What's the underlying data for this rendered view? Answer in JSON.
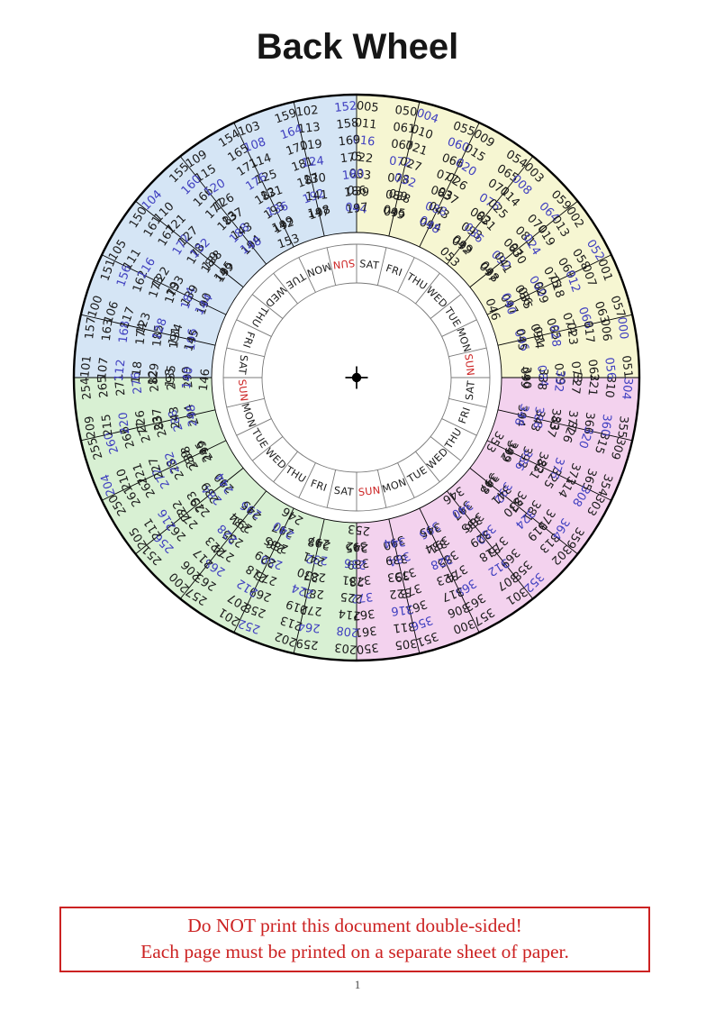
{
  "page": {
    "title": "Back Wheel",
    "page_number": "1"
  },
  "notice": {
    "line1": "Do NOT print this document double-sided!",
    "line2": "Each page must be printed on a separate sheet of paper."
  },
  "wheel": {
    "colors": {
      "yellow_quadrant": "#f6f6d2",
      "pink_quadrant": "#f3d2ee",
      "green_quadrant": "#d8f0d3",
      "blue_quadrant": "#d5e5f5",
      "number": "#1b1b1b",
      "leap_number": "#4040c0",
      "day_label": "#1b1b1b",
      "sun_label": "#cc2222",
      "sector_border": "#000000",
      "day_border": "#787878",
      "center_marker": "#000000"
    },
    "quadrants_clockwise_from_top": [
      {
        "name": "years-000-099",
        "color_key": "yellow_quadrant"
      },
      {
        "name": "years-300-399",
        "color_key": "pink_quadrant"
      },
      {
        "name": "years-200-299",
        "color_key": "green_quadrant"
      },
      {
        "name": "years-100-199",
        "color_key": "blue_quadrant"
      }
    ],
    "day_ring_clockwise_from_top": [
      "SAT",
      "FRI",
      "THU",
      "WED",
      "TUE",
      "MON",
      "SUN",
      "SAT",
      "FRI",
      "THU",
      "WED",
      "TUE",
      "MON",
      "SUN",
      "SAT",
      "FRI",
      "THU",
      "WED",
      "TUE",
      "MON",
      "SUN",
      "SAT",
      "FRI",
      "THU",
      "WED",
      "TUE",
      "MON",
      "SUN"
    ],
    "red_day": "SUN",
    "sectors_clockwise_from_top": [
      {
        "quadrant": 0,
        "col1": [
          "005",
          "011",
          "016",
          "022",
          "033",
          "039",
          "044"
        ],
        "col2": [
          "050",
          "061",
          "067",
          "072",
          "078",
          "089",
          "095"
        ]
      },
      {
        "quadrant": 0,
        "col1": [
          "004",
          "010",
          "021",
          "027",
          "032",
          "038",
          "049"
        ],
        "col2": [
          "055",
          "060",
          "066",
          "077",
          "083",
          "088",
          "094"
        ]
      },
      {
        "quadrant": 0,
        "col1": [
          "009",
          "015",
          "020",
          "026",
          "037",
          "043",
          "048"
        ],
        "col2": [
          "054",
          "065",
          "071",
          "076",
          "082",
          "093",
          "099"
        ]
      },
      {
        "quadrant": 0,
        "col1": [
          "003",
          "008",
          "014",
          "025",
          "031",
          "036",
          "042",
          "053"
        ],
        "col2": [
          "059",
          "064",
          "070",
          "081",
          "087",
          "092",
          "098"
        ]
      },
      {
        "quadrant": 0,
        "col1": [
          "002",
          "013",
          "019",
          "024",
          "030",
          "041",
          "047"
        ],
        "col2": [
          "052",
          "058",
          "069",
          "075",
          "080",
          "086",
          "097"
        ]
      },
      {
        "quadrant": 0,
        "col1": [
          "001",
          "007",
          "012",
          "018",
          "029",
          "035",
          "040",
          "046"
        ],
        "col2": [
          "057",
          "063",
          "068",
          "074",
          "085",
          "091",
          "096"
        ]
      },
      {
        "quadrant": 0,
        "col1": [
          "000",
          "006",
          "017",
          "023",
          "028",
          "034",
          "045"
        ],
        "col2": [
          "051",
          "056",
          "062",
          "073",
          "079",
          "084",
          "090"
        ]
      },
      {
        "quadrant": 1,
        "col1": [
          "304",
          "310",
          "321",
          "327",
          "332",
          "338",
          "349"
        ],
        "col2": [
          "355",
          "360",
          "366",
          "377",
          "383",
          "388",
          "394"
        ]
      },
      {
        "quadrant": 1,
        "col1": [
          "309",
          "315",
          "320",
          "326",
          "337",
          "343",
          "348"
        ],
        "col2": [
          "354",
          "365",
          "371",
          "376",
          "382",
          "393",
          "399"
        ]
      },
      {
        "quadrant": 1,
        "col1": [
          "303",
          "308",
          "314",
          "325",
          "331",
          "336",
          "342",
          "353"
        ],
        "col2": [
          "359",
          "364",
          "370",
          "381",
          "387",
          "392",
          "398"
        ]
      },
      {
        "quadrant": 1,
        "col1": [
          "302",
          "313",
          "319",
          "324",
          "330",
          "341",
          "347"
        ],
        "col2": [
          "352",
          "358",
          "369",
          "375",
          "380",
          "386",
          "397"
        ]
      },
      {
        "quadrant": 1,
        "col1": [
          "301",
          "307",
          "312",
          "318",
          "329",
          "335",
          "340",
          "346"
        ],
        "col2": [
          "357",
          "363",
          "368",
          "374",
          "385",
          "391",
          "396"
        ]
      },
      {
        "quadrant": 1,
        "col1": [
          "300",
          "306",
          "317",
          "323",
          "328",
          "334",
          "345"
        ],
        "col2": [
          "351",
          "356",
          "362",
          "373",
          "379",
          "384",
          "390"
        ]
      },
      {
        "quadrant": 1,
        "col1": [
          "305",
          "311",
          "316",
          "322",
          "333",
          "339",
          "344"
        ],
        "col2": [
          "350",
          "361",
          "367",
          "372",
          "378",
          "389",
          "395"
        ]
      },
      {
        "quadrant": 2,
        "col1": [
          "203",
          "208",
          "214",
          "225",
          "231",
          "236",
          "242",
          "253"
        ],
        "col2": [
          "259",
          "264",
          "270",
          "281",
          "287",
          "292",
          "298"
        ]
      },
      {
        "quadrant": 2,
        "col1": [
          "202",
          "213",
          "219",
          "224",
          "230",
          "241",
          "247"
        ],
        "col2": [
          "252",
          "258",
          "269",
          "275",
          "280",
          "286",
          "297"
        ]
      },
      {
        "quadrant": 2,
        "col1": [
          "201",
          "207",
          "212",
          "218",
          "229",
          "235",
          "240",
          "246"
        ],
        "col2": [
          "257",
          "263",
          "268",
          "274",
          "285",
          "291",
          "296"
        ]
      },
      {
        "quadrant": 2,
        "col1": [
          "200",
          "206",
          "217",
          "223",
          "228",
          "234",
          "245"
        ],
        "col2": [
          "251",
          "256",
          "262",
          "273",
          "279",
          "284",
          "290"
        ]
      },
      {
        "quadrant": 2,
        "col1": [
          "205",
          "211",
          "216",
          "222",
          "233",
          "239",
          "244"
        ],
        "col2": [
          "250",
          "261",
          "267",
          "272",
          "278",
          "289",
          "295"
        ]
      },
      {
        "quadrant": 2,
        "col1": [
          "204",
          "210",
          "221",
          "227",
          "232",
          "238",
          "249"
        ],
        "col2": [
          "255",
          "260",
          "266",
          "277",
          "283",
          "288",
          "294"
        ]
      },
      {
        "quadrant": 2,
        "col1": [
          "209",
          "215",
          "220",
          "226",
          "237",
          "243",
          "248"
        ],
        "col2": [
          "254",
          "265",
          "271",
          "276",
          "282",
          "293",
          "299"
        ]
      },
      {
        "quadrant": 3,
        "col1": [
          "101",
          "107",
          "112",
          "118",
          "129",
          "135",
          "140",
          "146"
        ],
        "col2": [
          "157",
          "163",
          "168",
          "174",
          "185",
          "191",
          "196"
        ]
      },
      {
        "quadrant": 3,
        "col1": [
          "100",
          "106",
          "117",
          "123",
          "128",
          "134",
          "145"
        ],
        "col2": [
          "151",
          "156",
          "162",
          "173",
          "179",
          "184",
          "190"
        ]
      },
      {
        "quadrant": 3,
        "col1": [
          "105",
          "111",
          "116",
          "122",
          "133",
          "139",
          "144"
        ],
        "col2": [
          "150",
          "161",
          "167",
          "172",
          "178",
          "189",
          "195"
        ]
      },
      {
        "quadrant": 3,
        "col1": [
          "104",
          "110",
          "121",
          "127",
          "132",
          "138",
          "149"
        ],
        "col2": [
          "155",
          "160",
          "166",
          "177",
          "183",
          "188",
          "194"
        ]
      },
      {
        "quadrant": 3,
        "col1": [
          "109",
          "115",
          "120",
          "126",
          "137",
          "143",
          "148"
        ],
        "col2": [
          "154",
          "165",
          "171",
          "176",
          "182",
          "193",
          "199"
        ]
      },
      {
        "quadrant": 3,
        "col1": [
          "103",
          "108",
          "114",
          "125",
          "131",
          "136",
          "142",
          "153"
        ],
        "col2": [
          "159",
          "164",
          "170",
          "181",
          "187",
          "192",
          "198"
        ]
      },
      {
        "quadrant": 3,
        "col1": [
          "102",
          "113",
          "119",
          "124",
          "130",
          "141",
          "147"
        ],
        "col2": [
          "152",
          "158",
          "169",
          "175",
          "180",
          "186",
          "197"
        ]
      }
    ]
  }
}
